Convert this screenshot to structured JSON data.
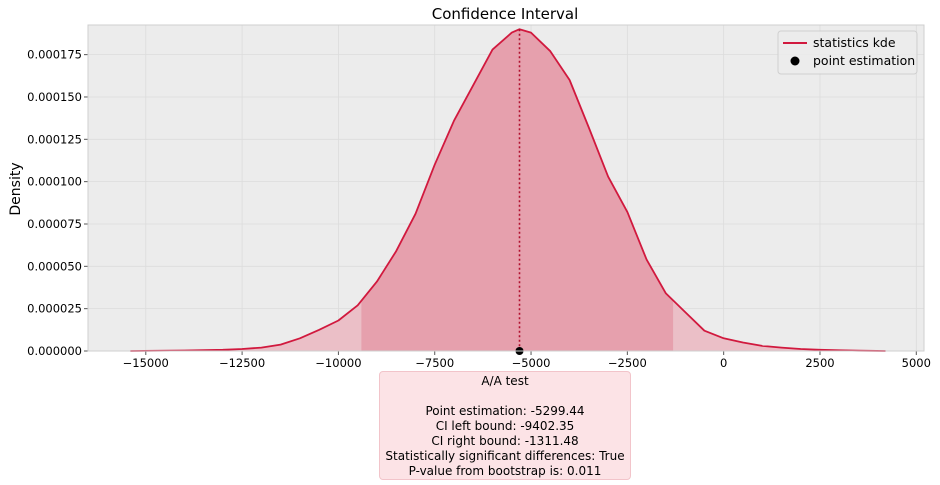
{
  "chart_data": {
    "type": "area",
    "title": "Confidence Interval",
    "xlabel": "",
    "ylabel": "Density",
    "xlim": [
      -16500,
      5200
    ],
    "ylim": [
      0,
      0.0001925
    ],
    "xticks": [
      -15000,
      -12500,
      -10000,
      -7500,
      -5000,
      -2500,
      0,
      2500,
      5000
    ],
    "xtick_labels": [
      "−15000",
      "−12500",
      "−10000",
      "−7500",
      "−5000",
      "−2500",
      "0",
      "2500",
      "5000"
    ],
    "yticks": [
      0,
      2.5e-05,
      5e-05,
      7.5e-05,
      0.0001,
      0.000125,
      0.00015,
      0.000175
    ],
    "ytick_labels": [
      "0.000000",
      "0.000025",
      "0.000050",
      "0.000075",
      "0.000100",
      "0.000125",
      "0.000150",
      "0.000175"
    ],
    "grid": true,
    "legend_position": "top-right",
    "legend": [
      {
        "label": "statistics kde",
        "kind": "line"
      },
      {
        "label": "point estimation",
        "kind": "marker"
      }
    ],
    "series": [
      {
        "name": "statistics kde",
        "x": [
          -15400,
          -14000,
          -13000,
          -12500,
          -12000,
          -11500,
          -11000,
          -10500,
          -10000,
          -9500,
          -9000,
          -8500,
          -8000,
          -7500,
          -7000,
          -6500,
          -6000,
          -5500,
          -5300,
          -5000,
          -4500,
          -4000,
          -3500,
          -3000,
          -2500,
          -2000,
          -1500,
          -1000,
          -500,
          0,
          500,
          1000,
          1500,
          2000,
          2500,
          3000,
          3500,
          4200
        ],
        "y": [
          0,
          3e-07,
          7e-07,
          1.2e-06,
          2e-06,
          3.8e-06,
          7.5e-06,
          1.25e-05,
          1.8e-05,
          2.7e-05,
          4.1e-05,
          5.9e-05,
          8.1e-05,
          0.00011,
          0.000136,
          0.000157,
          0.000178,
          0.000188,
          0.00019,
          0.000188,
          0.000177,
          0.00016,
          0.000132,
          0.000103,
          8.2e-05,
          5.4e-05,
          3.4e-05,
          2.3e-05,
          1.2e-05,
          7.5e-06,
          5e-06,
          3e-06,
          2e-06,
          1.2e-06,
          7e-07,
          4e-07,
          2e-07,
          0
        ]
      }
    ],
    "ci": {
      "left": -9402.35,
      "right": -1311.48
    },
    "point_estimation": -5299.44
  },
  "annotation": {
    "title": "A/A test",
    "lines": [
      "Point estimation: -5299.44",
      "CI left bound: -9402.35",
      "CI right bound: -1311.48",
      "Statistically significant differences: True",
      "P-value from bootstrap is: 0.011"
    ]
  },
  "colors": {
    "curve": "#d1193e",
    "ci_fill": "#e6a0ad",
    "tail_fill": "#ebbfc7",
    "plot_bg": "#ececec",
    "grid": "#dcdcdc",
    "annotation_bg": "#fce3e6"
  }
}
